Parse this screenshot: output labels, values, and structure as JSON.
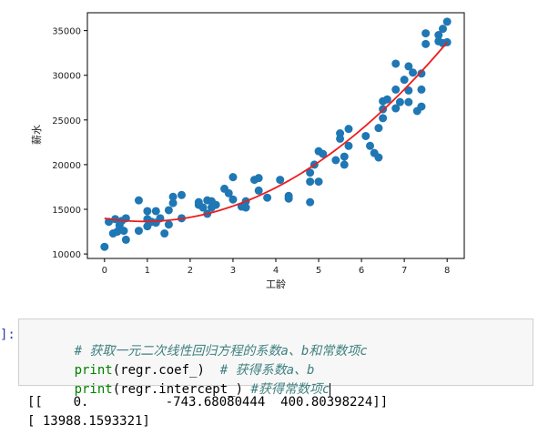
{
  "chart_data": {
    "type": "scatter",
    "title": "",
    "xlabel": "工龄",
    "ylabel": "薪水",
    "xlim": [
      -0.4,
      8.4
    ],
    "ylim": [
      9500,
      37000
    ],
    "xticks": [
      "0",
      "1",
      "2",
      "3",
      "4",
      "5",
      "6",
      "7",
      "8"
    ],
    "yticks": [
      "10000",
      "15000",
      "20000",
      "25000",
      "30000",
      "35000"
    ],
    "grid": false,
    "point_color": "#1f77b4",
    "curve_color": "#ee1c1c",
    "series": [
      {
        "type": "scatter",
        "points": [
          [
            0.0,
            10800
          ],
          [
            0.1,
            13600
          ],
          [
            0.2,
            12300
          ],
          [
            0.25,
            13900
          ],
          [
            0.3,
            12500
          ],
          [
            0.35,
            13200
          ],
          [
            0.4,
            13700
          ],
          [
            0.45,
            12600
          ],
          [
            0.5,
            11600
          ],
          [
            0.5,
            14000
          ],
          [
            0.8,
            16000
          ],
          [
            0.8,
            12600
          ],
          [
            1.0,
            14800
          ],
          [
            1.0,
            13900
          ],
          [
            1.0,
            13100
          ],
          [
            1.1,
            13600
          ],
          [
            1.2,
            14800
          ],
          [
            1.2,
            13500
          ],
          [
            1.3,
            14000
          ],
          [
            1.4,
            12300
          ],
          [
            1.5,
            13300
          ],
          [
            1.5,
            14900
          ],
          [
            1.6,
            15700
          ],
          [
            1.6,
            16400
          ],
          [
            1.8,
            16600
          ],
          [
            1.8,
            14000
          ],
          [
            2.2,
            15500
          ],
          [
            2.2,
            15800
          ],
          [
            2.3,
            15200
          ],
          [
            2.4,
            16000
          ],
          [
            2.4,
            14500
          ],
          [
            2.5,
            15900
          ],
          [
            2.5,
            15200
          ],
          [
            2.6,
            15500
          ],
          [
            2.8,
            17300
          ],
          [
            2.9,
            16800
          ],
          [
            3.0,
            18600
          ],
          [
            3.0,
            16100
          ],
          [
            3.2,
            15300
          ],
          [
            3.3,
            15900
          ],
          [
            3.3,
            15200
          ],
          [
            3.5,
            18300
          ],
          [
            3.6,
            17100
          ],
          [
            3.6,
            18500
          ],
          [
            3.8,
            16300
          ],
          [
            4.1,
            18300
          ],
          [
            4.3,
            16500
          ],
          [
            4.3,
            16200
          ],
          [
            4.8,
            19100
          ],
          [
            4.8,
            15800
          ],
          [
            4.8,
            18100
          ],
          [
            4.9,
            20000
          ],
          [
            5.0,
            21500
          ],
          [
            5.0,
            18100
          ],
          [
            5.1,
            21200
          ],
          [
            5.4,
            20500
          ],
          [
            5.5,
            23500
          ],
          [
            5.5,
            22900
          ],
          [
            5.6,
            20900
          ],
          [
            5.6,
            20000
          ],
          [
            5.7,
            24000
          ],
          [
            5.7,
            22100
          ],
          [
            6.1,
            23200
          ],
          [
            6.2,
            22100
          ],
          [
            6.3,
            21300
          ],
          [
            6.4,
            24100
          ],
          [
            6.4,
            20800
          ],
          [
            6.5,
            26200
          ],
          [
            6.5,
            25200
          ],
          [
            6.5,
            27100
          ],
          [
            6.6,
            27300
          ],
          [
            6.8,
            31300
          ],
          [
            6.8,
            28400
          ],
          [
            6.8,
            26300
          ],
          [
            6.9,
            27000
          ],
          [
            7.0,
            29500
          ],
          [
            7.1,
            28300
          ],
          [
            7.1,
            31000
          ],
          [
            7.1,
            27000
          ],
          [
            7.2,
            30300
          ],
          [
            7.3,
            26000
          ],
          [
            7.4,
            26500
          ],
          [
            7.4,
            28400
          ],
          [
            7.4,
            30200
          ],
          [
            7.5,
            33500
          ],
          [
            7.5,
            34700
          ],
          [
            7.8,
            34500
          ],
          [
            7.9,
            35200
          ],
          [
            7.8,
            33800
          ],
          [
            7.9,
            33600
          ],
          [
            8.0,
            36000
          ],
          [
            8.0,
            33700
          ]
        ]
      },
      {
        "type": "line",
        "equation": "13988.1593321 - 743.68080444*x + 400.80398224*x^2",
        "x_range": [
          0,
          8
        ]
      }
    ]
  },
  "cell": {
    "prompt": "]:",
    "line1": "# 获取一元二次线性回归方程的系数a、b和常数项c",
    "line2_fn": "print",
    "line2_rest": "(regr.coef_)  ",
    "line2_comment": "# 获得系数a、b",
    "line3_fn": "print",
    "line3_rest": "(regr.intercept_) ",
    "line3_comment": "#获得常数项c"
  },
  "output": {
    "line1": "[[    0.          -743.68080444  400.80398224]]",
    "line2": "[ 13988.1593321]"
  }
}
